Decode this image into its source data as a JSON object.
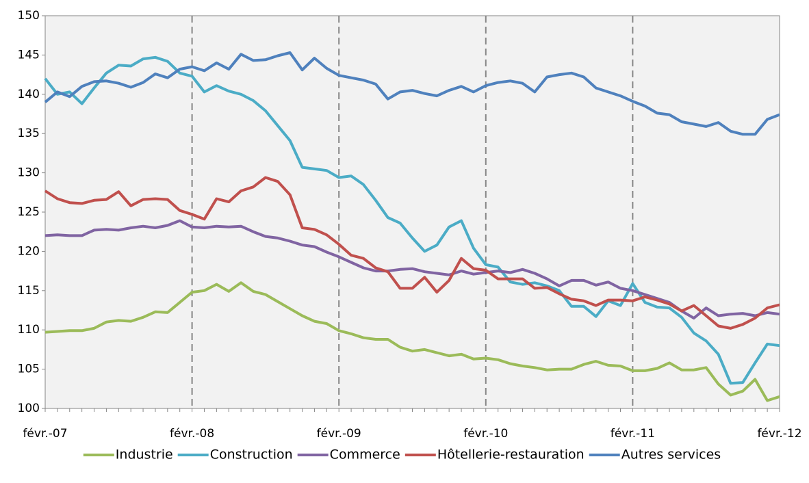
{
  "chart_data": {
    "type": "line",
    "categories": [
      "févr.-07",
      null,
      null,
      null,
      null,
      null,
      null,
      null,
      null,
      null,
      null,
      null,
      "févr.-08",
      null,
      null,
      null,
      null,
      null,
      null,
      null,
      null,
      null,
      null,
      null,
      "févr.-09",
      null,
      null,
      null,
      null,
      null,
      null,
      null,
      null,
      null,
      null,
      null,
      "févr.-10",
      null,
      null,
      null,
      null,
      null,
      null,
      null,
      null,
      null,
      null,
      null,
      "févr.-11",
      null,
      null,
      null,
      null,
      null,
      null,
      null,
      null,
      null,
      null,
      null,
      "févr.-12"
    ],
    "series": [
      {
        "name": "Industrie",
        "color": "#9bbb59",
        "values": [
          109.7,
          109.8,
          109.9,
          109.9,
          110.2,
          111.0,
          111.2,
          111.1,
          111.6,
          112.3,
          112.2,
          113.5,
          114.8,
          115.0,
          115.8,
          114.9,
          116.0,
          114.9,
          114.5,
          113.6,
          112.7,
          111.8,
          111.1,
          110.8,
          109.9,
          109.5,
          109.0,
          108.8,
          108.8,
          107.8,
          107.3,
          107.5,
          107.1,
          106.7,
          106.9,
          106.3,
          106.4,
          106.2,
          105.7,
          105.4,
          105.2,
          104.9,
          105.0,
          105.0,
          105.6,
          106.0,
          105.5,
          105.4,
          104.8,
          104.8,
          105.1,
          105.8,
          104.9,
          104.9,
          105.2,
          103.1,
          101.7,
          102.2,
          103.7,
          101.0,
          101.5
        ]
      },
      {
        "name": "Construction",
        "color": "#4bacc6",
        "values": [
          142.0,
          140.0,
          140.3,
          138.8,
          140.8,
          142.7,
          143.7,
          143.6,
          144.5,
          144.7,
          144.2,
          142.7,
          142.3,
          140.3,
          141.1,
          140.4,
          140.0,
          139.2,
          137.9,
          136.0,
          134.1,
          130.7,
          130.5,
          130.3,
          129.4,
          129.6,
          128.5,
          126.5,
          124.3,
          123.6,
          121.7,
          120.0,
          120.8,
          123.1,
          123.9,
          120.4,
          118.3,
          118.0,
          116.1,
          115.8,
          116.0,
          115.6,
          115.0,
          113.0,
          113.0,
          111.7,
          113.7,
          113.1,
          115.9,
          113.5,
          112.9,
          112.8,
          111.6,
          109.6,
          108.6,
          106.9,
          103.2,
          103.3,
          105.8,
          108.2,
          108.0
        ]
      },
      {
        "name": "Commerce",
        "color": "#8064a2",
        "values": [
          122.0,
          122.1,
          122.0,
          122.0,
          122.7,
          122.8,
          122.7,
          123.0,
          123.2,
          123.0,
          123.3,
          123.9,
          123.1,
          123.0,
          123.2,
          123.1,
          123.2,
          122.5,
          121.9,
          121.7,
          121.3,
          120.8,
          120.6,
          119.9,
          119.3,
          118.6,
          117.9,
          117.5,
          117.5,
          117.7,
          117.8,
          117.4,
          117.2,
          117.0,
          117.5,
          117.1,
          117.3,
          117.5,
          117.3,
          117.7,
          117.2,
          116.5,
          115.6,
          116.3,
          116.3,
          115.7,
          116.1,
          115.3,
          115.0,
          114.5,
          114.0,
          113.5,
          112.4,
          111.5,
          112.8,
          111.8,
          112.0,
          112.1,
          111.8,
          112.2,
          112.0
        ]
      },
      {
        "name": "Hôtellerie-restauration",
        "color": "#c0504d",
        "values": [
          127.7,
          126.7,
          126.2,
          126.1,
          126.5,
          126.6,
          127.6,
          125.8,
          126.6,
          126.7,
          126.6,
          125.2,
          124.7,
          124.1,
          126.7,
          126.3,
          127.7,
          128.2,
          129.4,
          128.9,
          127.2,
          123.0,
          122.8,
          122.1,
          120.9,
          119.5,
          119.1,
          117.9,
          117.4,
          115.3,
          115.3,
          116.7,
          114.8,
          116.3,
          119.1,
          117.8,
          117.6,
          116.5,
          116.5,
          116.5,
          115.3,
          115.4,
          114.6,
          113.9,
          113.7,
          113.1,
          113.8,
          113.8,
          113.7,
          114.2,
          113.8,
          113.3,
          112.4,
          113.1,
          111.8,
          110.5,
          110.2,
          110.7,
          111.5,
          112.8,
          113.2
        ]
      },
      {
        "name": "Autres services",
        "color": "#4f81bd",
        "values": [
          139.0,
          140.3,
          139.7,
          141.0,
          141.6,
          141.7,
          141.4,
          140.9,
          141.5,
          142.6,
          142.1,
          143.2,
          143.5,
          143.0,
          144.0,
          143.2,
          145.1,
          144.3,
          144.4,
          144.9,
          145.3,
          143.1,
          144.6,
          143.3,
          142.4,
          142.1,
          141.8,
          141.3,
          139.4,
          140.3,
          140.5,
          140.1,
          139.8,
          140.5,
          141.0,
          140.3,
          141.1,
          141.5,
          141.7,
          141.4,
          140.3,
          142.2,
          142.5,
          142.7,
          142.2,
          140.8,
          140.3,
          139.8,
          139.1,
          138.5,
          137.6,
          137.4,
          136.5,
          136.2,
          135.9,
          136.4,
          135.3,
          134.9,
          134.9,
          136.8,
          137.4
        ]
      }
    ],
    "ylim": [
      100,
      150
    ],
    "yticks": [
      100,
      105,
      110,
      115,
      120,
      125,
      130,
      135,
      140,
      145,
      150
    ],
    "grid": true,
    "legend": "bottom"
  }
}
